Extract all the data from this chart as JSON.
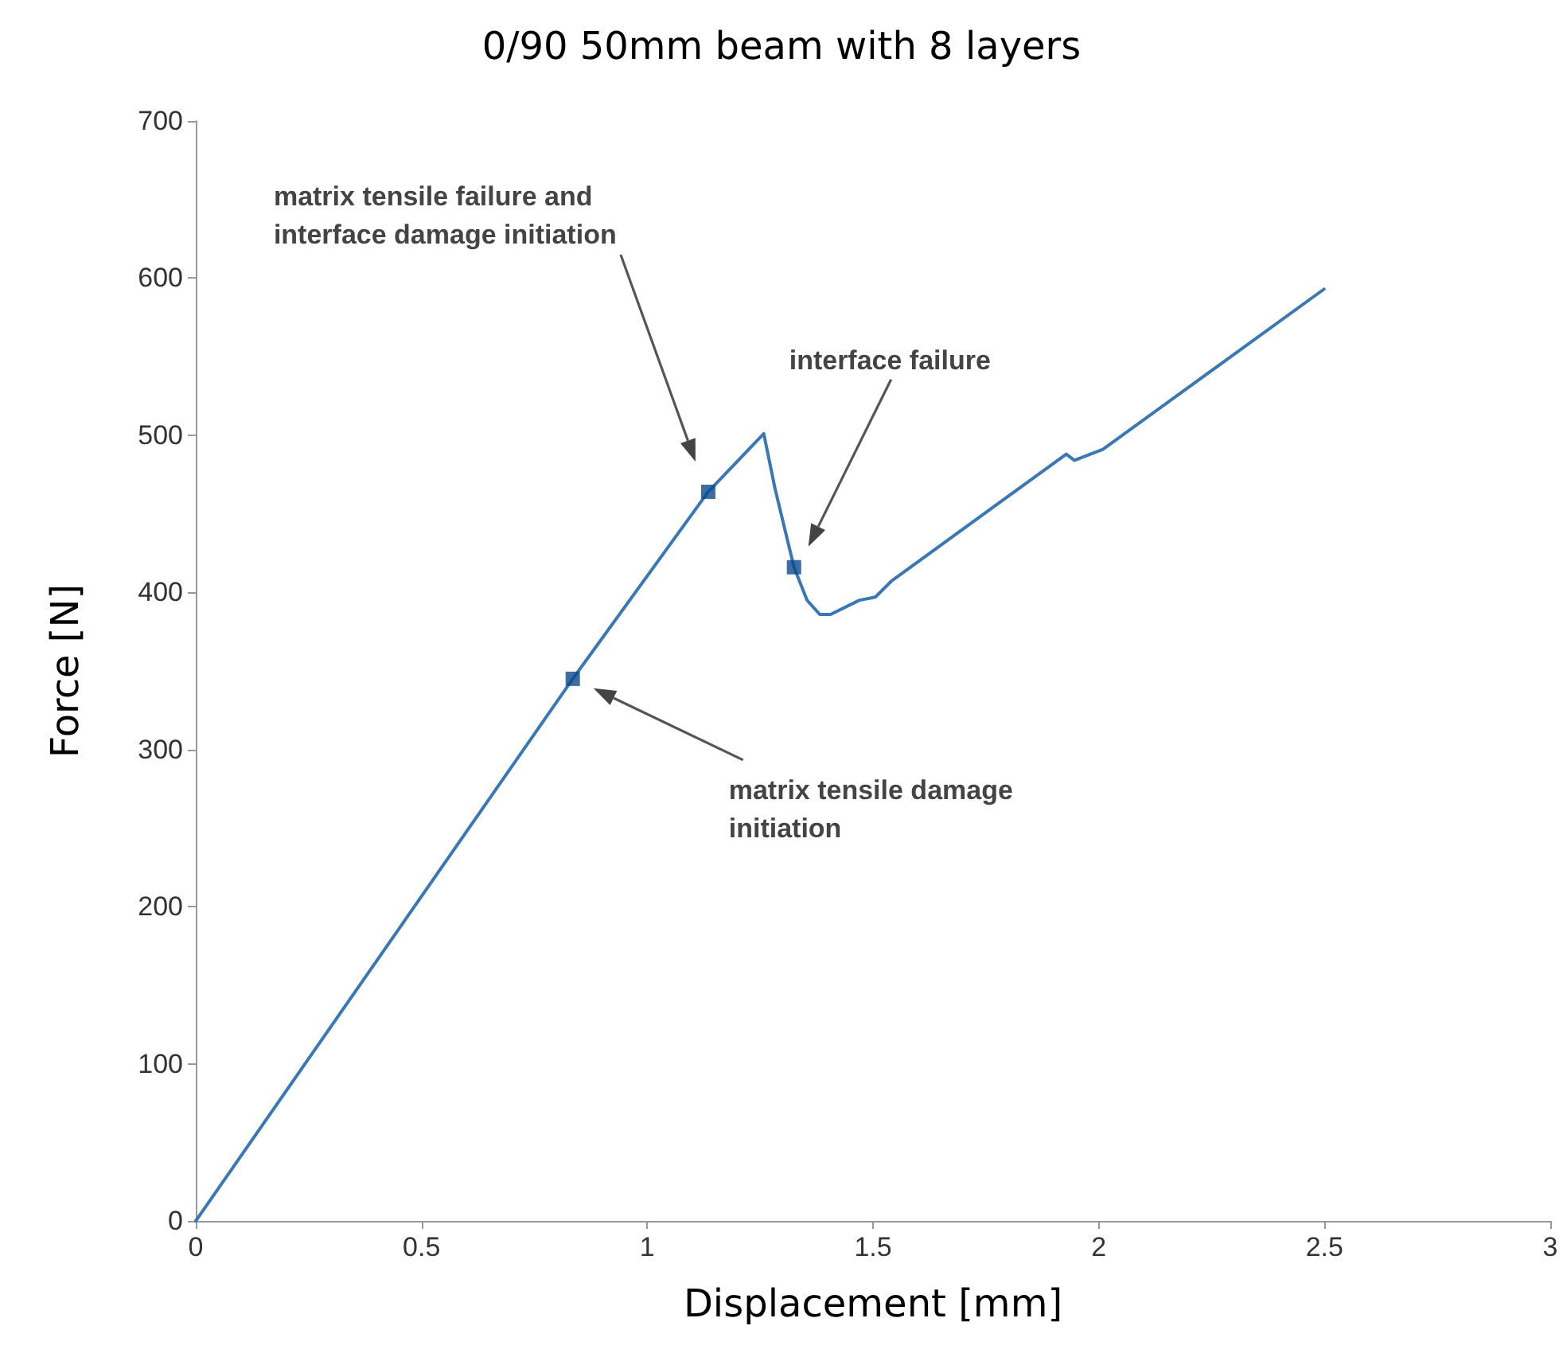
{
  "chart_data": {
    "type": "line",
    "title": "0/90 50mm beam with 8 layers",
    "xlabel": "Displacement [mm]",
    "ylabel": "Force [N]",
    "xlim": [
      0,
      3
    ],
    "xticks": [
      0,
      0.5,
      1,
      1.5,
      2,
      2.5,
      3
    ],
    "ylim": [
      0,
      700
    ],
    "yticks": [
      0,
      100,
      200,
      300,
      400,
      500,
      600,
      700
    ],
    "grid": false,
    "marker": "none",
    "line_style": "solid",
    "series": [
      {
        "color": "#3a77b5",
        "x": [
          0,
          0.835,
          1.135,
          1.258,
          1.283,
          1.325,
          1.354,
          1.382,
          1.406,
          1.47,
          1.505,
          1.54,
          1.928,
          1.946,
          2.009,
          2.499
        ],
        "values": [
          0,
          345,
          464,
          501,
          466,
          416,
          395,
          386,
          386,
          395,
          397,
          407,
          488,
          484,
          491,
          593
        ]
      },
      {
        "type": "scatter",
        "marker": "square",
        "color": "#0b4a8b",
        "x": [
          1.135,
          1.325,
          0.835
        ],
        "values": [
          464,
          416,
          345
        ]
      }
    ],
    "annotations": [
      "matrix tensile failure and interface damage initiation",
      "interface failure",
      "matrix tensile damage initiation"
    ]
  }
}
